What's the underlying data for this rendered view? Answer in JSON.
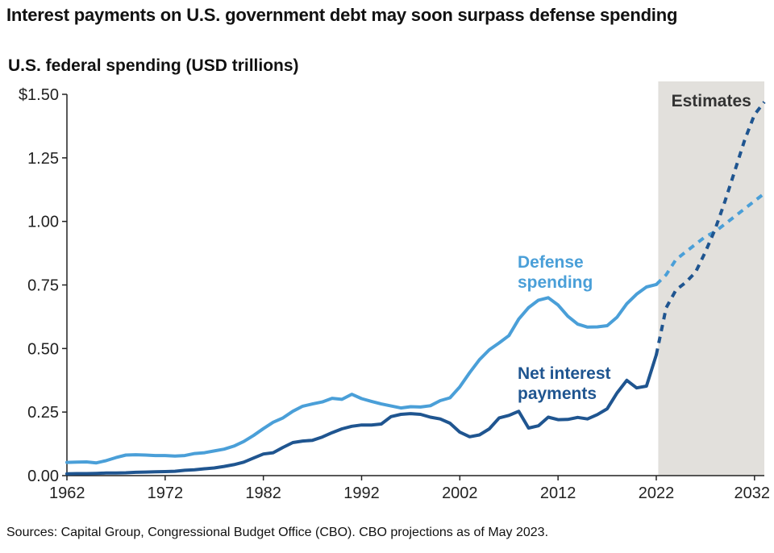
{
  "title": "Interest payments on U.S. government debt may soon surpass defense spending",
  "subtitle": "U.S. federal spending (USD trillions)",
  "source": "Sources: Capital Group, Congressional Budget Office (CBO). CBO projections as of May 2023.",
  "estimates_label": "Estimates",
  "colors": {
    "defense": "#4a9fd8",
    "interest": "#1f5590",
    "shade": "#e2e0dc",
    "axis": "#222222"
  },
  "chart_data": {
    "type": "line",
    "title": "Interest payments on U.S. government debt may soon surpass defense spending",
    "ylabel": "U.S. federal spending (USD trillions)",
    "xlim": [
      1962,
      2033
    ],
    "ylim": [
      0,
      1.5
    ],
    "x_ticks": [
      1962,
      1972,
      1982,
      1992,
      2002,
      2012,
      2022,
      2032
    ],
    "x_tick_labels": [
      "1962",
      "1972",
      "1982",
      "1992",
      "2002",
      "2012",
      "2022",
      "2032"
    ],
    "y_ticks": [
      0,
      0.25,
      0.5,
      0.75,
      1.0,
      1.25,
      1.5
    ],
    "y_tick_labels": [
      "0.00",
      "0.25",
      "0.50",
      "0.75",
      "1.00",
      "1.25",
      "$1.50"
    ],
    "shaded_region": {
      "x_start": 2022.2,
      "x_end": 2033,
      "label": "Estimates"
    },
    "estimate_start": 2022,
    "series": [
      {
        "name": "Defense spending",
        "label_lines": [
          "Defense",
          "spending"
        ],
        "color": "#4a9fd8",
        "points": [
          [
            1962,
            0.052
          ],
          [
            1963,
            0.053
          ],
          [
            1964,
            0.054
          ],
          [
            1965,
            0.05
          ],
          [
            1966,
            0.059
          ],
          [
            1967,
            0.071
          ],
          [
            1968,
            0.081
          ],
          [
            1969,
            0.082
          ],
          [
            1970,
            0.081
          ],
          [
            1971,
            0.079
          ],
          [
            1972,
            0.079
          ],
          [
            1973,
            0.077
          ],
          [
            1974,
            0.079
          ],
          [
            1975,
            0.087
          ],
          [
            1976,
            0.09
          ],
          [
            1977,
            0.097
          ],
          [
            1978,
            0.104
          ],
          [
            1979,
            0.116
          ],
          [
            1980,
            0.134
          ],
          [
            1981,
            0.158
          ],
          [
            1982,
            0.185
          ],
          [
            1983,
            0.21
          ],
          [
            1984,
            0.227
          ],
          [
            1985,
            0.253
          ],
          [
            1986,
            0.273
          ],
          [
            1987,
            0.282
          ],
          [
            1988,
            0.29
          ],
          [
            1989,
            0.304
          ],
          [
            1990,
            0.3
          ],
          [
            1991,
            0.32
          ],
          [
            1992,
            0.303
          ],
          [
            1993,
            0.292
          ],
          [
            1994,
            0.282
          ],
          [
            1995,
            0.274
          ],
          [
            1996,
            0.266
          ],
          [
            1997,
            0.271
          ],
          [
            1998,
            0.27
          ],
          [
            1999,
            0.275
          ],
          [
            2000,
            0.295
          ],
          [
            2001,
            0.306
          ],
          [
            2002,
            0.349
          ],
          [
            2003,
            0.405
          ],
          [
            2004,
            0.456
          ],
          [
            2005,
            0.495
          ],
          [
            2006,
            0.522
          ],
          [
            2007,
            0.551
          ],
          [
            2008,
            0.616
          ],
          [
            2009,
            0.661
          ],
          [
            2010,
            0.69
          ],
          [
            2011,
            0.7
          ],
          [
            2012,
            0.671
          ],
          [
            2013,
            0.627
          ],
          [
            2014,
            0.596
          ],
          [
            2015,
            0.584
          ],
          [
            2016,
            0.585
          ],
          [
            2017,
            0.59
          ],
          [
            2018,
            0.623
          ],
          [
            2019,
            0.676
          ],
          [
            2020,
            0.714
          ],
          [
            2021,
            0.742
          ],
          [
            2022,
            0.752
          ],
          [
            2023,
            0.79
          ],
          [
            2024,
            0.85
          ],
          [
            2025,
            0.88
          ],
          [
            2026,
            0.91
          ],
          [
            2027,
            0.94
          ],
          [
            2028,
            0.96
          ],
          [
            2029,
            0.99
          ],
          [
            2030,
            1.02
          ],
          [
            2031,
            1.05
          ],
          [
            2032,
            1.08
          ],
          [
            2033,
            1.11
          ]
        ]
      },
      {
        "name": "Net interest payments",
        "label_lines": [
          "Net interest",
          "payments"
        ],
        "color": "#1f5590",
        "points": [
          [
            1962,
            0.007
          ],
          [
            1963,
            0.008
          ],
          [
            1964,
            0.008
          ],
          [
            1965,
            0.009
          ],
          [
            1966,
            0.01
          ],
          [
            1967,
            0.01
          ],
          [
            1968,
            0.011
          ],
          [
            1969,
            0.013
          ],
          [
            1970,
            0.014
          ],
          [
            1971,
            0.015
          ],
          [
            1972,
            0.016
          ],
          [
            1973,
            0.017
          ],
          [
            1974,
            0.021
          ],
          [
            1975,
            0.023
          ],
          [
            1976,
            0.027
          ],
          [
            1977,
            0.03
          ],
          [
            1978,
            0.036
          ],
          [
            1979,
            0.043
          ],
          [
            1980,
            0.053
          ],
          [
            1981,
            0.069
          ],
          [
            1982,
            0.085
          ],
          [
            1983,
            0.09
          ],
          [
            1984,
            0.111
          ],
          [
            1985,
            0.13
          ],
          [
            1986,
            0.136
          ],
          [
            1987,
            0.139
          ],
          [
            1988,
            0.152
          ],
          [
            1989,
            0.169
          ],
          [
            1990,
            0.184
          ],
          [
            1991,
            0.194
          ],
          [
            1992,
            0.199
          ],
          [
            1993,
            0.199
          ],
          [
            1994,
            0.203
          ],
          [
            1995,
            0.232
          ],
          [
            1996,
            0.241
          ],
          [
            1997,
            0.244
          ],
          [
            1998,
            0.241
          ],
          [
            1999,
            0.23
          ],
          [
            2000,
            0.223
          ],
          [
            2001,
            0.206
          ],
          [
            2002,
            0.171
          ],
          [
            2003,
            0.153
          ],
          [
            2004,
            0.16
          ],
          [
            2005,
            0.184
          ],
          [
            2006,
            0.227
          ],
          [
            2007,
            0.237
          ],
          [
            2008,
            0.253
          ],
          [
            2009,
            0.187
          ],
          [
            2010,
            0.196
          ],
          [
            2011,
            0.23
          ],
          [
            2012,
            0.22
          ],
          [
            2013,
            0.221
          ],
          [
            2014,
            0.229
          ],
          [
            2015,
            0.223
          ],
          [
            2016,
            0.24
          ],
          [
            2017,
            0.263
          ],
          [
            2018,
            0.325
          ],
          [
            2019,
            0.375
          ],
          [
            2020,
            0.345
          ],
          [
            2021,
            0.352
          ],
          [
            2022,
            0.475
          ],
          [
            2023,
            0.66
          ],
          [
            2024,
            0.73
          ],
          [
            2025,
            0.76
          ],
          [
            2026,
            0.8
          ],
          [
            2027,
            0.88
          ],
          [
            2028,
            0.97
          ],
          [
            2029,
            1.08
          ],
          [
            2030,
            1.2
          ],
          [
            2031,
            1.32
          ],
          [
            2032,
            1.42
          ],
          [
            2033,
            1.47
          ]
        ]
      }
    ]
  }
}
